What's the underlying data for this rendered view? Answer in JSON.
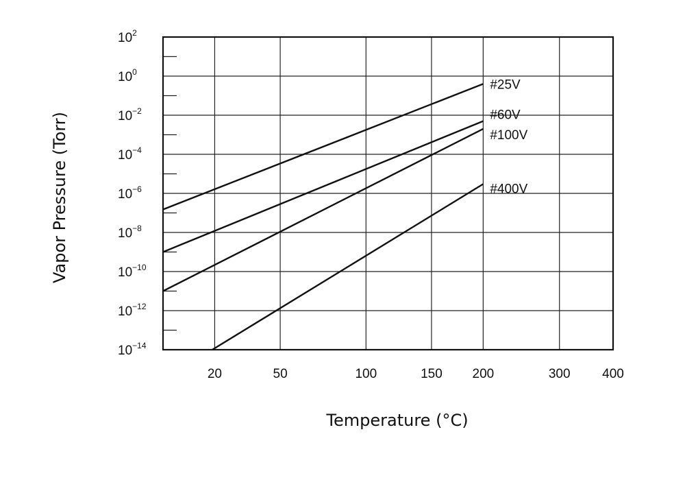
{
  "chart_data": {
    "type": "line",
    "title": "",
    "xlabel": "Temperature (°C)",
    "ylabel": "Vapor Pressure (Torr)",
    "x_scale": "reciprocal-kelvin",
    "y_scale": "log",
    "xlim": [
      0,
      400
    ],
    "ylim": [
      1e-14,
      100
    ],
    "x_ticks": [
      {
        "value": 20,
        "label": "20"
      },
      {
        "value": 50,
        "label": "50"
      },
      {
        "value": 100,
        "label": "100"
      },
      {
        "value": 150,
        "label": "150"
      },
      {
        "value": 200,
        "label": "200"
      },
      {
        "value": 300,
        "label": "300"
      },
      {
        "value": 400,
        "label": "400"
      }
    ],
    "y_ticks": [
      {
        "exp": -14,
        "base": "10",
        "sup": "−14"
      },
      {
        "exp": -12,
        "base": "10",
        "sup": "−12"
      },
      {
        "exp": -10,
        "base": "10",
        "sup": "−10"
      },
      {
        "exp": -8,
        "base": "10",
        "sup": "−8"
      },
      {
        "exp": -6,
        "base": "10",
        "sup": "−6"
      },
      {
        "exp": -4,
        "base": "10",
        "sup": "−4"
      },
      {
        "exp": -2,
        "base": "10",
        "sup": "−2"
      },
      {
        "exp": 0,
        "base": "10",
        "sup": "0"
      },
      {
        "exp": 2,
        "base": "10",
        "sup": "2"
      }
    ],
    "grid": true,
    "series": [
      {
        "name": "#25V",
        "x": [
          0,
          200
        ],
        "y": [
          1.5e-07,
          0.4
        ]
      },
      {
        "name": "#60V",
        "x": [
          0,
          200
        ],
        "y": [
          1e-09,
          0.005
        ]
      },
      {
        "name": "#100V",
        "x": [
          0,
          200
        ],
        "y": [
          1e-11,
          0.002
        ]
      },
      {
        "name": "#400V",
        "x": [
          19,
          200
        ],
        "y": [
          1e-14,
          3e-06
        ]
      }
    ]
  }
}
